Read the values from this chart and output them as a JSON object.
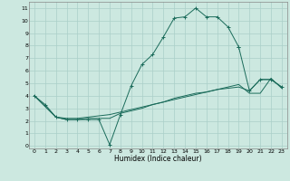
{
  "xlabel": "Humidex (Indice chaleur)",
  "xlim": [
    -0.5,
    23.5
  ],
  "ylim": [
    -0.2,
    11.5
  ],
  "xticks": [
    0,
    1,
    2,
    3,
    4,
    5,
    6,
    7,
    8,
    9,
    10,
    11,
    12,
    13,
    14,
    15,
    16,
    17,
    18,
    19,
    20,
    21,
    22,
    23
  ],
  "yticks": [
    0,
    1,
    2,
    3,
    4,
    5,
    6,
    7,
    8,
    9,
    10,
    11
  ],
  "bg_color": "#cce8e0",
  "line_color": "#1a6b5a",
  "grid_color": "#aacfc8",
  "line_main": {
    "x": [
      0,
      1,
      2,
      3,
      4,
      5,
      6,
      7,
      8,
      9,
      10,
      11,
      12,
      13,
      14,
      15,
      16,
      17,
      18,
      19
    ],
    "y": [
      4.0,
      3.3,
      2.3,
      2.1,
      2.1,
      2.1,
      2.1,
      0.1,
      2.5,
      4.8,
      6.5,
      7.3,
      8.7,
      10.2,
      10.3,
      11.0,
      10.3,
      10.3,
      9.5,
      7.9
    ]
  },
  "line_tail": {
    "x": [
      19,
      20,
      21,
      22,
      23
    ],
    "y": [
      7.9,
      4.4,
      5.3,
      5.3,
      4.7
    ]
  },
  "line_lower1": {
    "x": [
      0,
      2,
      3,
      4,
      5,
      6,
      7,
      8,
      9,
      10,
      11,
      12,
      13,
      14,
      15,
      16,
      17,
      18,
      19,
      20,
      21,
      22,
      23
    ],
    "y": [
      4.0,
      2.3,
      2.1,
      2.1,
      2.2,
      2.2,
      2.2,
      2.6,
      2.8,
      3.0,
      3.3,
      3.5,
      3.8,
      4.0,
      4.2,
      4.3,
      4.5,
      4.6,
      4.7,
      4.4,
      5.3,
      5.3,
      4.7
    ]
  },
  "line_lower2": {
    "x": [
      0,
      2,
      3,
      4,
      5,
      6,
      7,
      8,
      9,
      10,
      11,
      12,
      13,
      14,
      15,
      16,
      17,
      18,
      19,
      20,
      21,
      22,
      23
    ],
    "y": [
      4.0,
      2.3,
      2.2,
      2.2,
      2.3,
      2.4,
      2.5,
      2.7,
      2.9,
      3.1,
      3.3,
      3.5,
      3.7,
      3.9,
      4.1,
      4.3,
      4.5,
      4.7,
      4.9,
      4.2,
      4.2,
      5.4,
      4.6
    ]
  }
}
